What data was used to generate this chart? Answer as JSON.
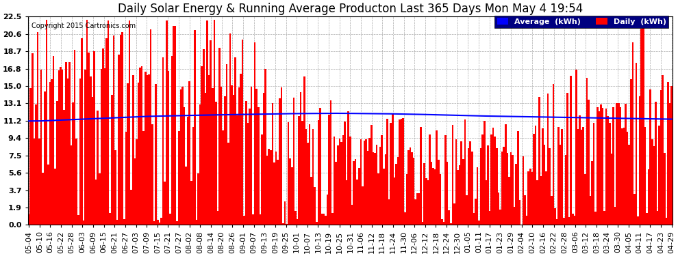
{
  "title": "Daily Solar Energy & Running Average Producton Last 365 Days Mon May 4 19:54",
  "copyright": "Copyright 2015 Cartronics.com",
  "yticks": [
    0.0,
    1.9,
    3.7,
    5.6,
    7.5,
    9.4,
    11.2,
    13.1,
    15.0,
    16.8,
    18.7,
    20.6,
    22.5
  ],
  "ymax": 22.5,
  "bar_color": "#ff0000",
  "line_color": "#0000ff",
  "background_color": "#ffffff",
  "grid_color": "#aaaaaa",
  "title_fontsize": 12,
  "legend_labels": [
    "Average  (kWh)",
    "Daily  (kWh)"
  ],
  "xtick_labels": [
    "05-04",
    "05-10",
    "05-16",
    "05-22",
    "05-28",
    "06-03",
    "06-09",
    "06-15",
    "06-21",
    "06-27",
    "07-03",
    "07-09",
    "07-15",
    "07-21",
    "07-27",
    "08-02",
    "08-08",
    "08-14",
    "08-20",
    "08-26",
    "09-01",
    "09-07",
    "09-13",
    "09-19",
    "09-25",
    "10-01",
    "10-07",
    "10-13",
    "10-19",
    "10-25",
    "10-31",
    "11-06",
    "11-12",
    "11-18",
    "11-24",
    "11-30",
    "12-06",
    "12-12",
    "12-18",
    "12-24",
    "12-30",
    "01-05",
    "01-11",
    "01-17",
    "01-23",
    "01-29",
    "02-04",
    "02-10",
    "02-16",
    "02-22",
    "02-28",
    "03-06",
    "03-12",
    "03-18",
    "03-24",
    "03-30",
    "04-05",
    "04-11",
    "04-17",
    "04-23",
    "04-29"
  ],
  "avg_line_values": [
    11.2,
    11.2,
    11.25,
    11.3,
    11.35,
    11.4,
    11.45,
    11.5,
    11.55,
    11.6,
    11.65,
    11.7,
    11.72,
    11.75,
    11.78,
    11.8,
    11.82,
    11.85,
    11.87,
    11.89,
    11.91,
    11.93,
    11.95,
    11.97,
    11.99,
    12.0,
    12.01,
    12.02,
    12.03,
    12.03,
    12.02,
    12.01,
    12.0,
    11.99,
    11.97,
    11.95,
    11.93,
    11.9,
    11.87,
    11.84,
    11.81,
    11.78,
    11.75,
    11.73,
    11.71,
    11.69,
    11.67,
    11.65,
    11.63,
    11.61,
    11.59,
    11.57,
    11.55,
    11.53,
    11.51,
    11.49,
    11.47,
    11.45,
    11.43,
    11.41,
    11.4
  ]
}
